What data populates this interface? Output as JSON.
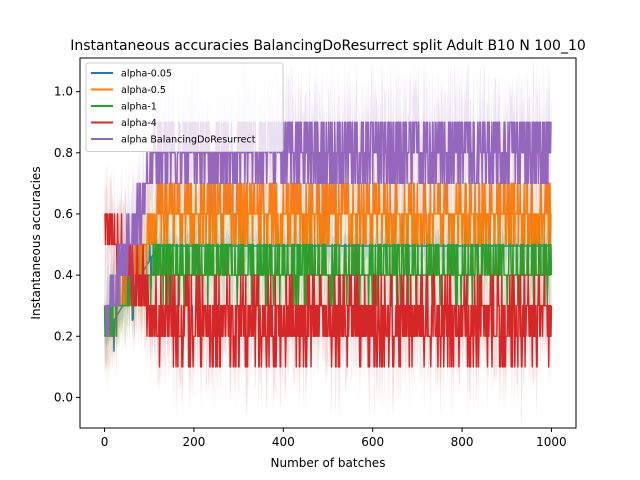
{
  "chart_data": {
    "type": "line",
    "title": "Instantaneous accuracies BalancingDoResurrect split Adult B10 N 100_10",
    "xlabel": "Number of batches",
    "ylabel": "Instantaneous accuracies",
    "xlim": [
      -55,
      1055
    ],
    "ylim": [
      -0.1,
      1.11
    ],
    "xticks": [
      0,
      200,
      400,
      600,
      800,
      1000
    ],
    "yticks": [
      0.0,
      0.2,
      0.4,
      0.6,
      0.8,
      1.0
    ],
    "xtick_labels": [
      "0",
      "200",
      "400",
      "600",
      "800",
      "1000"
    ],
    "ytick_labels": [
      "0.0",
      "0.2",
      "0.4",
      "0.6",
      "0.8",
      "1.0"
    ],
    "grid": false,
    "legend_position": "top-left",
    "n_points": 1001,
    "series": [
      {
        "name": "alpha-0.05",
        "color": "#1f77b4",
        "profile": {
          "start": 0.2,
          "plateau": 0.495,
          "noise": 0.02,
          "band": 0.04
        }
      },
      {
        "name": "alpha-0.5",
        "color": "#ff7f0e",
        "profile": {
          "start": 0.2,
          "plateau": 0.6,
          "noise": 0.1,
          "band": 0.12
        }
      },
      {
        "name": "alpha-1",
        "color": "#2ca02c",
        "profile": {
          "start": 0.25,
          "plateau": 0.42,
          "noise": 0.08,
          "band": 0.1
        }
      },
      {
        "name": "alpha-4",
        "color": "#d62728",
        "profile": {
          "start": 0.6,
          "plateau": 0.25,
          "noise": 0.14,
          "band": 0.12,
          "min": 0.0,
          "max": 0.7
        }
      },
      {
        "name": "alpha BalancingDoResurrect",
        "color": "#9467bd",
        "profile": {
          "start": 0.25,
          "plateau": 0.8,
          "noise": 0.14,
          "band": 0.14,
          "max": 1.0
        }
      }
    ]
  }
}
